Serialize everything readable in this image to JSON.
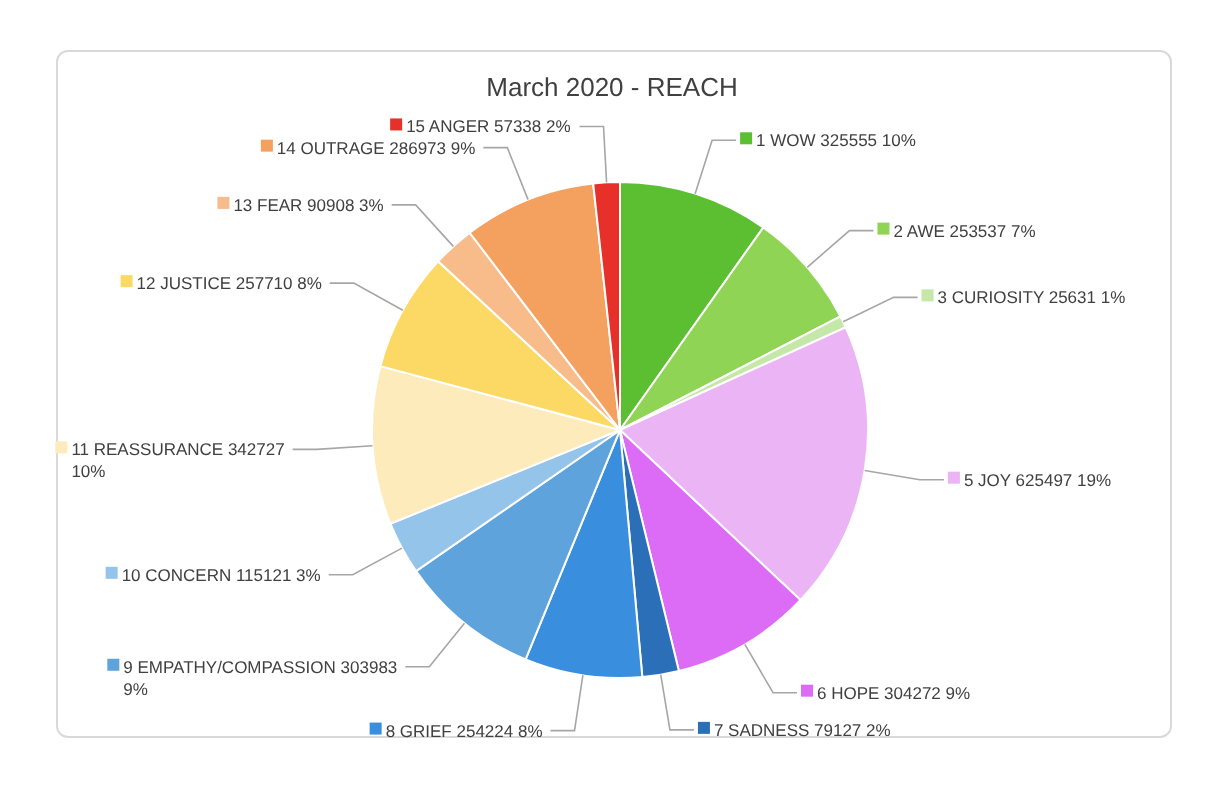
{
  "chart_data": {
    "type": "pie",
    "title": "March 2020 - REACH",
    "categories": [
      "1 WOW",
      "2 AWE",
      "3 CURIOSITY",
      "5 JOY",
      "6 HOPE",
      "7 SADNESS",
      "8 GRIEF",
      "9 EMPATHY/COMPASSION",
      "10 CONCERN",
      "11 REASSURANCE",
      "12 JUSTICE",
      "13 FEAR",
      "14 OUTRAGE",
      "15 ANGER"
    ],
    "values": [
      325555,
      253537,
      25631,
      625497,
      304272,
      79127,
      254224,
      303983,
      115121,
      342727,
      257710,
      90908,
      286973,
      57338
    ],
    "value_labels": [
      "325555 10%",
      "253537 7%",
      "25631 1%",
      "625497 19%",
      "304272 9%",
      "79127 2%",
      "254224 8%",
      "303983 9%",
      "115121 3%",
      "342727 10%",
      "257710 8%",
      "90908 3%",
      "286973 9%",
      "57338 2%"
    ],
    "colors": [
      "#5cbf32",
      "#8fd454",
      "#c5e8a8",
      "#ebb5f5",
      "#dc6cf5",
      "#2a6fb8",
      "#3a8ede",
      "#5ea3dc",
      "#94c4ea",
      "#fdebbb",
      "#fcd965",
      "#f8bb8a",
      "#f4a05e",
      "#e8302a"
    ],
    "legend": true
  }
}
